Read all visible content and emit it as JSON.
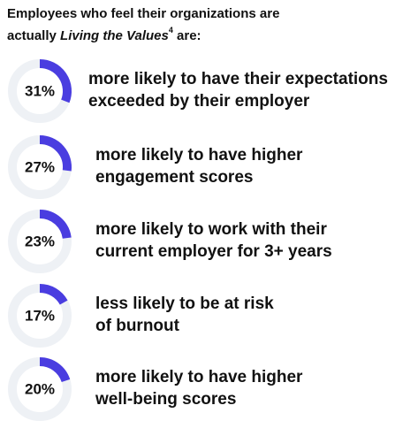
{
  "header": {
    "title_start": "Employees who feel their organizations are",
    "title_line2_start": "actually ",
    "title_italic": "Living the Values",
    "title_sup": "4",
    "title_end": " are:"
  },
  "arc_color": "#4a3de0",
  "track_color": "#eef1f5",
  "items": [
    {
      "value": 31,
      "value_label": "31%",
      "lines": [
        "more likely to have their expectations",
        "exceeded by their employer"
      ]
    },
    {
      "value": 27,
      "value_label": "27%",
      "lines": [
        "more likely to have higher",
        "engagement scores"
      ]
    },
    {
      "value": 23,
      "value_label": "23%",
      "lines": [
        "more likely to work with their",
        "current employer for 3+ years"
      ]
    },
    {
      "value": 17,
      "value_label": "17%",
      "lines": [
        "less likely to be at risk",
        "of burnout"
      ]
    },
    {
      "value": 20,
      "value_label": "20%",
      "lines": [
        "more likely to have higher",
        "well-being scores"
      ]
    }
  ]
}
